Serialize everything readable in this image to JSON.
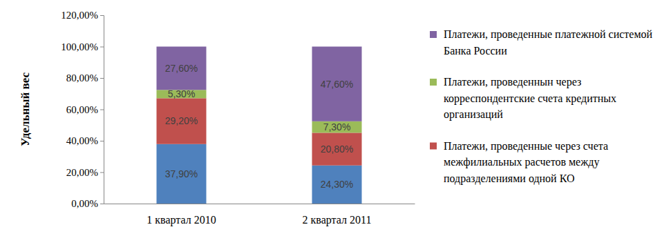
{
  "chart_data": {
    "type": "bar",
    "stacked": true,
    "data_labels": true,
    "grid": false,
    "legend": "right",
    "y_label": "Удельный вес",
    "categories": [
      "1 квартал 2010",
      "2 квартал 2011"
    ],
    "ylim": [
      0,
      120
    ],
    "yticks": [
      {
        "value": 0,
        "label": "0,00%"
      },
      {
        "value": 20,
        "label": "20,00%"
      },
      {
        "value": 40,
        "label": "40,00%"
      },
      {
        "value": 60,
        "label": "60,00%"
      },
      {
        "value": 80,
        "label": "80,00%"
      },
      {
        "value": 100,
        "label": "100,00%"
      },
      {
        "value": 120,
        "label": "120,00%"
      }
    ],
    "series": [
      {
        "color": "#4f81bd",
        "values": [
          37.9,
          24.3
        ],
        "value_labels": [
          "37,90%",
          "24,30%"
        ]
      },
      {
        "name": "Платежи, проведенные через счета межфилиальных расчетов между подразделениями одной КО",
        "color": "#c0504d",
        "values": [
          29.2,
          20.8
        ],
        "value_labels": [
          "29,20%",
          "20,80%"
        ]
      },
      {
        "name": "Платежи, проведеннын через корреспондентские счета кредитных организаций",
        "color": "#9bbb59",
        "values": [
          5.3,
          7.3
        ],
        "value_labels": [
          "5,30%",
          "7,30%"
        ]
      },
      {
        "name": "Платежи, проведенные платежной системой Банка России",
        "color": "#8064a2",
        "values": [
          27.6,
          47.6
        ],
        "value_labels": [
          "27,60%",
          "47,60%"
        ]
      }
    ]
  }
}
